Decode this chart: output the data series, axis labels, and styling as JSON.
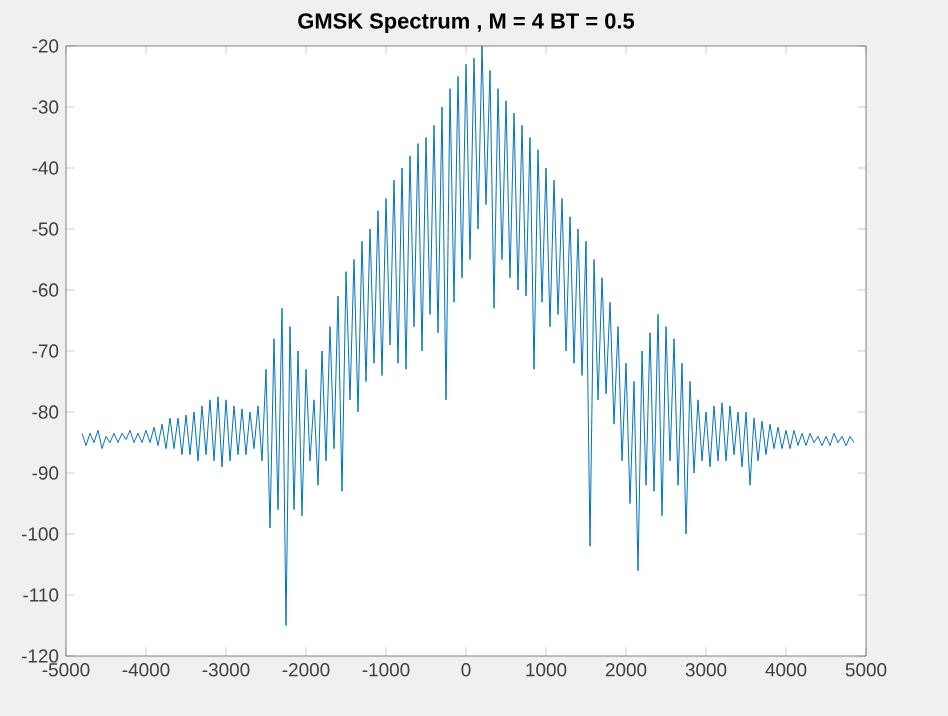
{
  "chart_data": {
    "type": "line",
    "title": "GMSK Spectrum , M = 4  BT = 0.5",
    "xlim": [
      -5000,
      5000
    ],
    "ylim": [
      -120,
      -20
    ],
    "xticks": [
      -5000,
      -4000,
      -3000,
      -2000,
      -1000,
      0,
      1000,
      2000,
      3000,
      4000,
      5000
    ],
    "yticks": [
      -120,
      -110,
      -100,
      -90,
      -80,
      -70,
      -60,
      -50,
      -40,
      -30,
      -20
    ],
    "marker": "none",
    "line_style": "solid",
    "series": [
      {
        "color": "#0072bd",
        "x": [
          -4800,
          -4750,
          -4700,
          -4650,
          -4600,
          -4550,
          -4500,
          -4450,
          -4400,
          -4350,
          -4300,
          -4250,
          -4200,
          -4150,
          -4100,
          -4050,
          -4000,
          -3950,
          -3900,
          -3850,
          -3800,
          -3750,
          -3700,
          -3650,
          -3600,
          -3550,
          -3500,
          -3450,
          -3400,
          -3350,
          -3300,
          -3250,
          -3200,
          -3150,
          -3100,
          -3050,
          -3000,
          -2950,
          -2900,
          -2850,
          -2800,
          -2750,
          -2700,
          -2650,
          -2600,
          -2550,
          -2500,
          -2450,
          -2400,
          -2350,
          -2300,
          -2250,
          -2200,
          -2150,
          -2100,
          -2050,
          -2000,
          -1950,
          -1900,
          -1850,
          -1800,
          -1750,
          -1700,
          -1650,
          -1600,
          -1550,
          -1500,
          -1450,
          -1400,
          -1350,
          -1300,
          -1250,
          -1200,
          -1150,
          -1100,
          -1050,
          -1000,
          -950,
          -900,
          -850,
          -800,
          -750,
          -700,
          -650,
          -600,
          -550,
          -500,
          -450,
          -400,
          -350,
          -300,
          -250,
          -200,
          -150,
          -100,
          -50,
          0,
          50,
          100,
          150,
          200,
          250,
          300,
          350,
          400,
          450,
          500,
          550,
          600,
          650,
          700,
          750,
          800,
          850,
          900,
          950,
          1000,
          1050,
          1100,
          1150,
          1200,
          1250,
          1300,
          1350,
          1400,
          1450,
          1500,
          1550,
          1600,
          1650,
          1700,
          1750,
          1800,
          1850,
          1900,
          1950,
          2000,
          2050,
          2100,
          2150,
          2200,
          2250,
          2300,
          2350,
          2400,
          2450,
          2500,
          2550,
          2600,
          2650,
          2700,
          2750,
          2800,
          2850,
          2900,
          2950,
          3000,
          3050,
          3100,
          3150,
          3200,
          3250,
          3300,
          3350,
          3400,
          3450,
          3500,
          3550,
          3600,
          3650,
          3700,
          3750,
          3800,
          3850,
          3900,
          3950,
          4000,
          4050,
          4100,
          4150,
          4200,
          4250,
          4300,
          4350,
          4400,
          4450,
          4500,
          4550,
          4600,
          4650,
          4700,
          4750,
          4800,
          4850
        ],
        "values": [
          -83.5,
          -85.5,
          -83.5,
          -85,
          -83,
          -86,
          -84,
          -85,
          -83.5,
          -85,
          -83.5,
          -84.5,
          -83,
          -85,
          -83.5,
          -85,
          -83,
          -85,
          -82.5,
          -85.5,
          -82,
          -86,
          -81,
          -86,
          -81,
          -87,
          -80.5,
          -87,
          -80,
          -88,
          -79,
          -87,
          -78,
          -88,
          -77.5,
          -89,
          -78,
          -88,
          -79,
          -87,
          -79.5,
          -87,
          -80,
          -86,
          -79,
          -88,
          -73,
          -99,
          -68,
          -96,
          -63,
          -115,
          -66,
          -96,
          -70,
          -97,
          -73,
          -88,
          -78,
          -92,
          -70,
          -88,
          -66,
          -86,
          -61,
          -93,
          -57,
          -78,
          -55,
          -80,
          -52,
          -75,
          -50,
          -72,
          -47,
          -74,
          -45,
          -69,
          -42,
          -72,
          -40,
          -73,
          -38,
          -66,
          -36,
          -70,
          -35,
          -64,
          -33,
          -67,
          -30,
          -78,
          -27,
          -62,
          -25,
          -58,
          -23,
          -55,
          -22,
          -50,
          -20,
          -46,
          -24,
          -63,
          -27,
          -55,
          -29,
          -58,
          -31,
          -60,
          -33,
          -61,
          -35,
          -73,
          -37,
          -62,
          -40,
          -66,
          -42,
          -64,
          -45,
          -70,
          -48,
          -72,
          -50,
          -74,
          -52,
          -102,
          -55,
          -78,
          -58,
          -77,
          -62,
          -82,
          -66,
          -88,
          -72,
          -95,
          -75,
          -106,
          -70,
          -92,
          -67,
          -93,
          -64,
          -97,
          -66,
          -88,
          -68,
          -92,
          -72,
          -100,
          -75,
          -90,
          -78,
          -88,
          -80,
          -89,
          -79,
          -88,
          -78.5,
          -88,
          -79,
          -87,
          -80,
          -89,
          -80,
          -92,
          -81,
          -88,
          -81.5,
          -87,
          -82,
          -86,
          -82.5,
          -86,
          -83,
          -86,
          -83,
          -85.5,
          -83.5,
          -85.5,
          -83.5,
          -85,
          -84,
          -85.5,
          -84,
          -85.5,
          -83.5,
          -85,
          -84,
          -85.5,
          -84,
          -85
        ]
      }
    ]
  }
}
